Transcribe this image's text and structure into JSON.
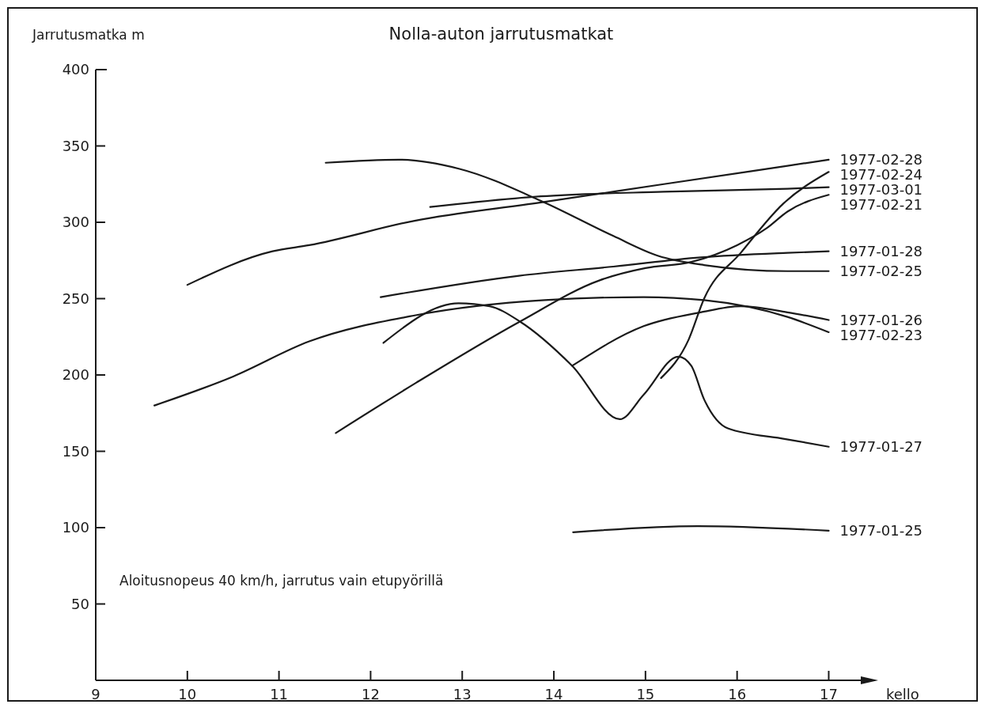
{
  "chart_data": {
    "type": "line",
    "title": "Nolla-auton jarrutusmatkat",
    "ylabel": "Jarrutusmatka m",
    "xlabel": "kello",
    "annotations": [
      "Aloitusnopeus 40 km/h, jarrutus vain etupyörillä"
    ],
    "xlim": [
      9,
      17.35
    ],
    "ylim": [
      0,
      400
    ],
    "xticks": [
      9,
      10,
      11,
      12,
      13,
      14,
      15,
      16,
      17
    ],
    "yticks": [
      50,
      100,
      150,
      200,
      250,
      300,
      350,
      400
    ],
    "line_style": "solid",
    "series": [
      {
        "name": "1977-02-28",
        "color": "#1a1a1a",
        "x": [
          10.0,
          10.93,
          11.33,
          12.48,
          13.86,
          15.2,
          16.55,
          17
        ],
        "values": [
          259,
          281,
          285,
          301,
          313,
          325,
          337,
          341
        ]
      },
      {
        "name": "1977-02-24",
        "color": "#1a1a1a",
        "x": [
          15.17,
          15.47,
          15.64,
          16.04,
          16.5,
          17
        ],
        "values": [
          198,
          223,
          250,
          280,
          312,
          333
        ]
      },
      {
        "name": "1977-03-01",
        "color": "#1a1a1a",
        "x": [
          12.65,
          13.86,
          15.2,
          16.55,
          17
        ],
        "values": [
          310,
          317,
          320,
          322,
          323
        ]
      },
      {
        "name": "1977-02-21",
        "color": "#1a1a1a",
        "x": [
          11.62,
          12.5,
          13.63,
          14.5,
          15.0,
          15.5,
          16.0,
          16.32,
          16.55,
          17
        ],
        "values": [
          162,
          195,
          235,
          262,
          270,
          274,
          285,
          296,
          307,
          318
        ]
      },
      {
        "name": "1977-01-28",
        "color": "#1a1a1a",
        "x": [
          12.11,
          13.62,
          14.65,
          15.6,
          16.55,
          17
        ],
        "values": [
          251,
          265,
          271,
          277,
          280,
          281
        ]
      },
      {
        "name": "1977-02-25",
        "color": "#1a1a1a",
        "x": [
          11.51,
          12.31,
          12.97,
          13.86,
          14.65,
          15.14,
          15.64,
          16.55,
          17
        ],
        "values": [
          339,
          341,
          335,
          314,
          291,
          278,
          272,
          268,
          268
        ]
      },
      {
        "name": "1977-01-26",
        "color": "#1a1a1a",
        "x": [
          14.2,
          14.98,
          15.6,
          16.04,
          16.55,
          17
        ],
        "values": [
          206,
          232,
          241,
          245,
          241,
          236
        ]
      },
      {
        "name": "1977-02-23",
        "color": "#1a1a1a",
        "x": [
          9.64,
          10.5,
          11.33,
          12.48,
          13.9,
          14.98,
          15.64,
          16.55,
          17
        ],
        "values": [
          180,
          199,
          222,
          239,
          249,
          251,
          249,
          238,
          228
        ]
      },
      {
        "name": "1977-01-27",
        "color": "#1a1a1a",
        "x": [
          12.14,
          12.96,
          13.3,
          13.63,
          14.2,
          14.72,
          14.98,
          15.36,
          15.5,
          15.64,
          15.9,
          16.53,
          17
        ],
        "values": [
          221,
          247,
          245,
          235,
          206,
          171,
          187,
          212,
          206,
          184,
          165,
          158,
          153
        ]
      },
      {
        "name": "1977-01-25",
        "color": "#1a1a1a",
        "x": [
          14.21,
          15.57,
          17
        ],
        "values": [
          97,
          101,
          98
        ]
      }
    ]
  }
}
